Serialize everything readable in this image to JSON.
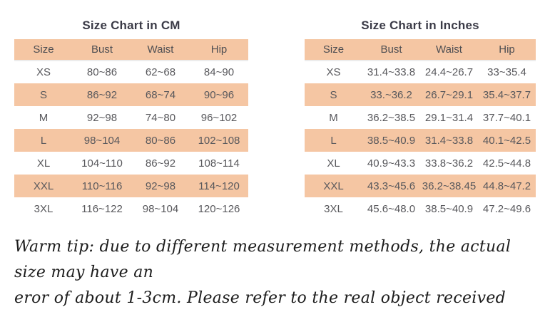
{
  "colors": {
    "accent": "#f5c6a3",
    "title_text": "#3b3b47",
    "cell_text": "#58585c",
    "tip_text": "#1c1c1c"
  },
  "tables": {
    "cm": {
      "title": "Size Chart in CM",
      "headers": [
        "Size",
        "Bust",
        "Waist",
        "Hip"
      ],
      "rows": [
        [
          "XS",
          "80~86",
          "62~68",
          "84~90"
        ],
        [
          "S",
          "86~92",
          "68~74",
          "90~96"
        ],
        [
          "M",
          "92~98",
          "74~80",
          "96~102"
        ],
        [
          "L",
          "98~104",
          "80~86",
          "102~108"
        ],
        [
          "XL",
          "104~110",
          "86~92",
          "108~114"
        ],
        [
          "XXL",
          "110~116",
          "92~98",
          "114~120"
        ],
        [
          "3XL",
          "116~122",
          "98~104",
          "120~126"
        ]
      ]
    },
    "inches": {
      "title": "Size Chart in Inches",
      "headers": [
        "Size",
        "Bust",
        "Waist",
        "Hip"
      ],
      "rows": [
        [
          "XS",
          "31.4~33.8",
          "24.4~26.7",
          "33~35.4"
        ],
        [
          "S",
          "33.~36.2",
          "26.7~29.1",
          "35.4~37.7"
        ],
        [
          "M",
          "36.2~38.5",
          "29.1~31.4",
          "37.7~40.1"
        ],
        [
          "L",
          "38.5~40.9",
          "31.4~33.8",
          "40.1~42.5"
        ],
        [
          "XL",
          "40.9~43.3",
          "33.8~36.2",
          "42.5~44.8"
        ],
        [
          "XXL",
          "43.3~45.6",
          "36.2~38.45",
          "44.8~47.2"
        ],
        [
          "3XL",
          "45.6~48.0",
          "38.5~40.9",
          "47.2~49.6"
        ]
      ]
    }
  },
  "warm_tip": {
    "line1": "Warm tip: due to different measurement methods, the actual size may have an",
    "line2": "eror of about 1-3cm. Please refer to the real object received"
  }
}
